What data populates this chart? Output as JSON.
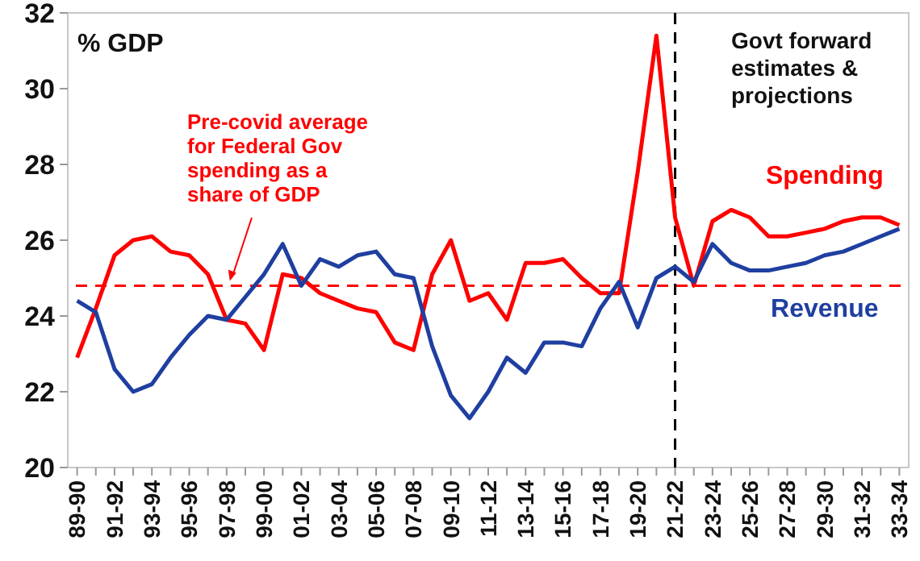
{
  "chart_data": {
    "type": "line",
    "ylabel": "% GDP",
    "categories": [
      "89-90",
      null,
      "91-92",
      null,
      "93-94",
      null,
      "95-96",
      null,
      "97-98",
      null,
      "99-00",
      null,
      "01-02",
      null,
      "03-04",
      null,
      "05-06",
      null,
      "07-08",
      null,
      "09-10",
      null,
      "11-12",
      null,
      "13-14",
      null,
      "15-16",
      null,
      "17-18",
      null,
      "19-20",
      null,
      "21-22",
      null,
      "23-24",
      null,
      "25-26",
      null,
      "27-28",
      null,
      "29-30",
      null,
      "31-32",
      null,
      "33-34"
    ],
    "series": [
      {
        "name": "Spending",
        "color": "#ff0000",
        "values": [
          22.9,
          24.2,
          25.6,
          26.0,
          26.1,
          25.7,
          25.6,
          25.1,
          23.9,
          23.8,
          23.1,
          25.1,
          25.0,
          24.6,
          24.4,
          24.2,
          24.1,
          23.3,
          23.1,
          25.1,
          26.0,
          24.4,
          24.6,
          23.9,
          25.4,
          25.4,
          25.5,
          25.0,
          24.6,
          24.6,
          27.8,
          31.4,
          26.6,
          24.8,
          26.5,
          26.8,
          26.6,
          26.1,
          26.1,
          26.2,
          26.3,
          26.5,
          26.6,
          26.6,
          26.4
        ]
      },
      {
        "name": "Revenue",
        "color": "#1f3fa0",
        "values": [
          24.4,
          24.1,
          22.6,
          22.0,
          22.2,
          22.9,
          23.5,
          24.0,
          23.9,
          24.5,
          25.1,
          25.9,
          24.8,
          25.5,
          25.3,
          25.6,
          25.7,
          25.1,
          25.0,
          23.2,
          21.9,
          21.3,
          22.0,
          22.9,
          22.5,
          23.3,
          23.3,
          23.2,
          24.2,
          24.9,
          23.7,
          25.0,
          25.3,
          24.9,
          25.9,
          25.4,
          25.2,
          25.2,
          25.3,
          25.4,
          25.6,
          25.7,
          25.9,
          26.1,
          26.3
        ]
      }
    ],
    "ylim": [
      20,
      32
    ],
    "yticks": [
      20,
      22,
      24,
      26,
      28,
      30,
      32
    ],
    "grid": false,
    "line_style": "solid",
    "marker": "none",
    "ref_lines": [
      {
        "axis": "y",
        "value": 24.8,
        "label": "Pre-covid average for Federal Gov spending as a share of GDP",
        "color": "#ff0000",
        "line_style": "dashed"
      },
      {
        "axis": "x",
        "value": "21-22",
        "color": "#000000",
        "line_style": "dashed"
      }
    ],
    "annotations": [
      "Govt forward estimates & projections"
    ]
  }
}
